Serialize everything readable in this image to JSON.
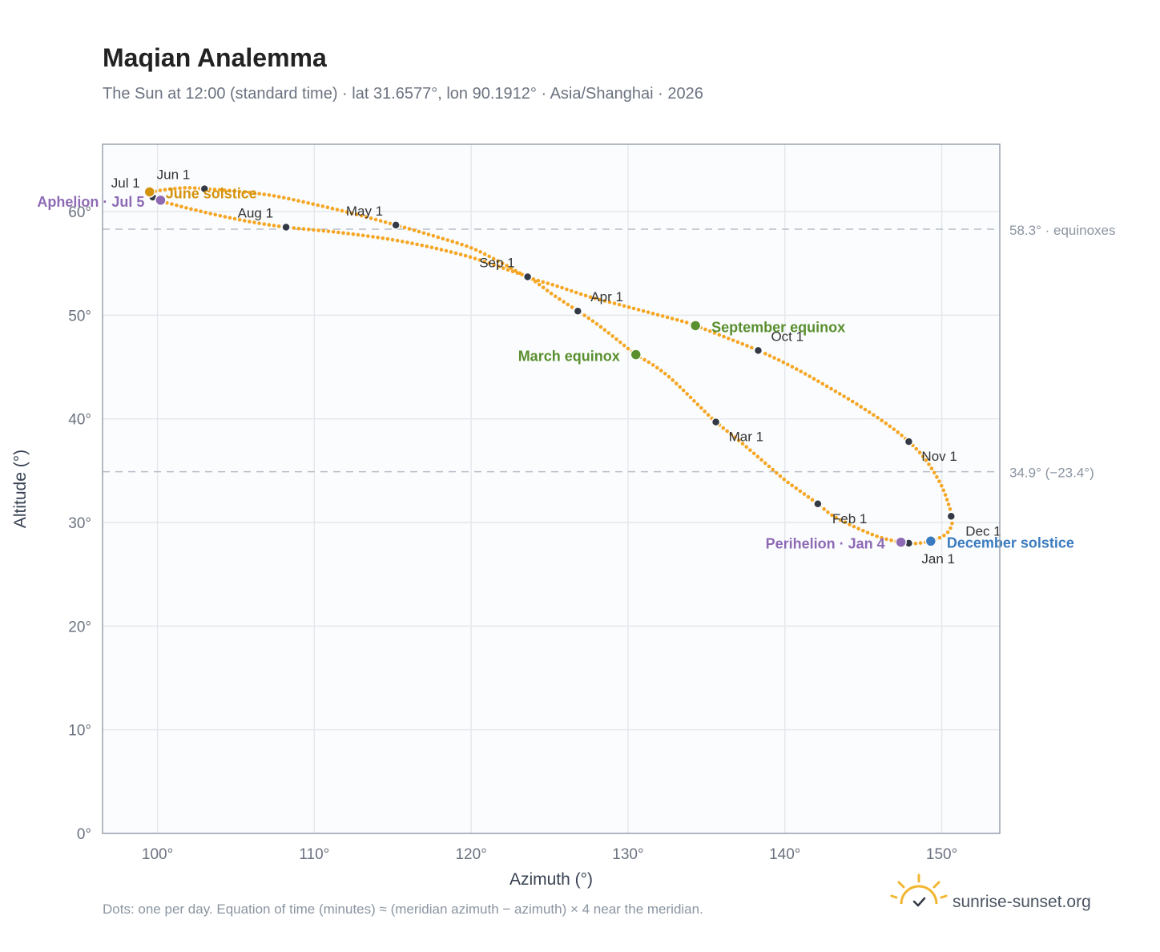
{
  "header": {
    "title": "Maqian Analemma",
    "subtitle": "The Sun at 12:00 (standard time) · lat 31.6577°, lon 90.1912° · Asia/Shanghai · 2026"
  },
  "footer": {
    "note": "Dots: one per day. Equation of time (minutes) ≈ (meridian azimuth − azimuth) × 4 near the meridian.",
    "brand": "sunrise-sunset.org"
  },
  "colors": {
    "curve": "#f5a623",
    "month_dot": "#333a45",
    "equinox": "#5a8f2e",
    "june_solstice": "#d4930d",
    "december_solstice": "#3b7bbf",
    "apsis": "#8e6ab5",
    "grid": "#e5e8ec",
    "reference_line": "#b8bec7",
    "frame": "#9aa3ae",
    "plot_background": "#fafcfe"
  },
  "chart_data": {
    "type": "scatter",
    "xlabel": "Azimuth (°)",
    "ylabel": "Altitude (°)",
    "xlim": [
      96.5,
      153.7
    ],
    "ylim": [
      0,
      66.5
    ],
    "x_ticks": [
      100,
      110,
      120,
      130,
      140,
      150
    ],
    "x_tick_labels": [
      "100°",
      "110°",
      "120°",
      "130°",
      "140°",
      "150°"
    ],
    "y_ticks": [
      0,
      10,
      20,
      30,
      40,
      50,
      60
    ],
    "y_tick_labels": [
      "0°",
      "10°",
      "20°",
      "30°",
      "40°",
      "50°",
      "60°"
    ],
    "grid": true,
    "curve_path": [
      [
        147.7,
        27.9
      ],
      [
        147.0,
        28.2
      ],
      [
        146.0,
        28.6
      ],
      [
        145.0,
        29.2
      ],
      [
        144.0,
        29.9
      ],
      [
        143.0,
        30.7
      ],
      [
        142.1,
        31.8
      ],
      [
        141.0,
        33.0
      ],
      [
        140.0,
        34.1
      ],
      [
        139.0,
        35.4
      ],
      [
        138.0,
        36.7
      ],
      [
        137.0,
        38.0
      ],
      [
        135.6,
        39.7
      ],
      [
        134.5,
        41.3
      ],
      [
        133.5,
        42.8
      ],
      [
        132.5,
        44.2
      ],
      [
        131.5,
        45.3
      ],
      [
        130.5,
        46.2
      ],
      [
        129.5,
        47.4
      ],
      [
        128.5,
        48.6
      ],
      [
        127.6,
        49.6
      ],
      [
        126.8,
        50.4
      ],
      [
        126.0,
        51.2
      ],
      [
        125.2,
        52.0
      ],
      [
        124.4,
        52.9
      ],
      [
        123.6,
        53.7
      ],
      [
        122.5,
        54.3
      ],
      [
        121.0,
        55.1
      ],
      [
        119.5,
        55.8
      ],
      [
        117.0,
        56.7
      ],
      [
        114.5,
        57.4
      ],
      [
        111.5,
        58.0
      ],
      [
        108.2,
        58.5
      ],
      [
        106.0,
        59.0
      ],
      [
        104.0,
        59.6
      ],
      [
        102.0,
        60.3
      ],
      [
        101.0,
        60.7
      ],
      [
        100.2,
        61.0
      ],
      [
        99.8,
        61.3
      ],
      [
        99.6,
        61.6
      ],
      [
        99.6,
        61.8
      ],
      [
        100.0,
        62.0
      ],
      [
        101.0,
        62.2
      ],
      [
        102.0,
        62.3
      ],
      [
        103.0,
        62.2
      ],
      [
        104.0,
        62.1
      ],
      [
        105.5,
        61.9
      ],
      [
        107.5,
        61.5
      ],
      [
        110.0,
        60.7
      ],
      [
        112.5,
        59.8
      ],
      [
        115.2,
        58.7
      ],
      [
        117.5,
        57.7
      ],
      [
        120.0,
        56.5
      ],
      [
        122.0,
        55.0
      ],
      [
        123.6,
        53.7
      ],
      [
        125.5,
        52.8
      ],
      [
        127.5,
        51.8
      ],
      [
        129.5,
        51.0
      ],
      [
        131.5,
        50.2
      ],
      [
        133.5,
        49.4
      ],
      [
        134.3,
        49.0
      ],
      [
        136.0,
        48.0
      ],
      [
        138.3,
        46.6
      ],
      [
        140.5,
        45.0
      ],
      [
        142.5,
        43.3
      ],
      [
        144.5,
        41.5
      ],
      [
        146.5,
        39.5
      ],
      [
        147.9,
        37.8
      ],
      [
        149.0,
        36.0
      ],
      [
        150.0,
        33.5
      ],
      [
        150.6,
        31.0
      ],
      [
        150.7,
        30.6
      ],
      [
        150.6,
        29.6
      ],
      [
        150.2,
        28.8
      ],
      [
        149.3,
        28.2
      ],
      [
        148.5,
        28.0
      ],
      [
        147.7,
        27.9
      ]
    ],
    "month_markers": [
      {
        "label": "Jan 1",
        "x": 147.9,
        "y": 28.0
      },
      {
        "label": "Feb 1",
        "x": 142.1,
        "y": 31.8
      },
      {
        "label": "Mar 1",
        "x": 135.6,
        "y": 39.7
      },
      {
        "label": "Apr 1",
        "x": 126.8,
        "y": 50.4
      },
      {
        "label": "May 1",
        "x": 115.2,
        "y": 58.7
      },
      {
        "label": "Jun 1",
        "x": 103.0,
        "y": 62.2
      },
      {
        "label": "Jul 1",
        "x": 99.7,
        "y": 61.4
      },
      {
        "label": "Aug 1",
        "x": 108.2,
        "y": 58.5
      },
      {
        "label": "Sep 1",
        "x": 123.6,
        "y": 53.7
      },
      {
        "label": "Oct 1",
        "x": 138.3,
        "y": 46.6
      },
      {
        "label": "Nov 1",
        "x": 147.9,
        "y": 37.8
      },
      {
        "label": "Dec 1",
        "x": 150.6,
        "y": 30.6
      }
    ],
    "events": [
      {
        "label": "March equinox",
        "x": 130.5,
        "y": 46.2,
        "color": "#5a8f2e"
      },
      {
        "label": "June solstice",
        "x": 99.5,
        "y": 61.9,
        "color": "#d4930d"
      },
      {
        "label": "September equinox",
        "x": 134.3,
        "y": 49.0,
        "color": "#5a8f2e"
      },
      {
        "label": "December solstice",
        "x": 149.3,
        "y": 28.2,
        "color": "#3b7bbf"
      },
      {
        "label": "Perihelion · Jan 4",
        "x": 147.4,
        "y": 28.1,
        "color": "#8e6ab5"
      },
      {
        "label": "Aphelion · Jul 5",
        "x": 100.2,
        "y": 61.1,
        "color": "#8e6ab5"
      }
    ],
    "reference_lines": [
      {
        "y": 58.3,
        "label": "58.3° · equinoxes"
      },
      {
        "y": 34.9,
        "label": "34.9° (−23.4°)"
      }
    ]
  }
}
